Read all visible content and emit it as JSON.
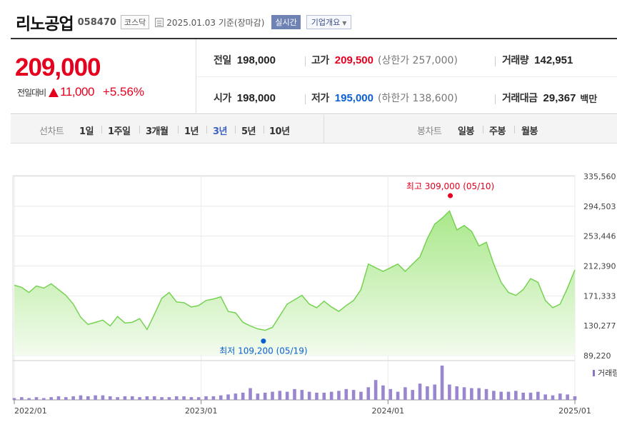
{
  "header": {
    "name": "리노공업",
    "code": "058470",
    "market": "코스닥",
    "date": "2025.01.03",
    "date_suffix": "기준(장마감)",
    "realtime": "실시간",
    "overview": "기업개요"
  },
  "quote": {
    "price": "209,000",
    "change_label": "전일대비",
    "change": "11,000",
    "change_pct": "+5.56%",
    "prev_label": "전일",
    "prev": "198,000",
    "high_label": "고가",
    "high": "209,500",
    "upper_limit": "(상한가 257,000)",
    "volume_label": "거래량",
    "volume": "142,951",
    "open_label": "시가",
    "open": "198,000",
    "low_label": "저가",
    "low": "195,000",
    "lower_limit": "(하한가 138,600)",
    "amount_label": "거래대금",
    "amount": "29,367",
    "amount_unit": "백만"
  },
  "tabs": {
    "line_label": "선차트",
    "periods": [
      "1일",
      "1주일",
      "3개월",
      "1년",
      "3년",
      "5년",
      "10년"
    ],
    "active_period": "3년",
    "candle_label": "봉차트",
    "candles": [
      "일봉",
      "주봉",
      "월봉"
    ]
  },
  "chart_data": {
    "type": "area",
    "x_start": "2022-01",
    "x_end": "2025-01",
    "x_ticks": [
      "2022/01",
      "2023/01",
      "2024/01",
      "2025/01"
    ],
    "y_ticks": [
      89220,
      130277,
      171333,
      212390,
      253446,
      294503,
      335560
    ],
    "ylim": [
      89220,
      335560
    ],
    "high_annotation": "최고 309,000 (05/10)",
    "low_annotation": "최저 109,200 (05/19)",
    "high_point": {
      "month": "2024-05",
      "value": 309000
    },
    "low_point": {
      "month": "2023-05",
      "value": 109200
    },
    "volume_legend": "거래량",
    "series": [
      {
        "values": [
          186000,
          183000,
          176000,
          185000,
          182000,
          188000,
          180000,
          172000,
          160000,
          142000,
          132000,
          135000,
          138000,
          130000,
          143000,
          134000,
          135000,
          140000,
          125000,
          146000,
          168000,
          176000,
          163000,
          162000,
          156000,
          158000,
          165000,
          167000,
          170000,
          150000,
          148000,
          135000,
          130000,
          126000,
          124000,
          128000,
          144000,
          160000,
          166000,
          172000,
          160000,
          155000,
          164000,
          156000,
          150000,
          158000,
          165000,
          180000,
          215000,
          210000,
          205000,
          210000,
          215000,
          205000,
          215000,
          225000,
          250000,
          270000,
          278000,
          288000,
          262000,
          268000,
          260000,
          240000,
          245000,
          215000,
          190000,
          176000,
          172000,
          180000,
          195000,
          190000,
          165000,
          155000,
          160000,
          182000,
          207000
        ]
      },
      {
        "name": "거래량",
        "values": [
          2,
          3,
          2,
          3,
          2,
          3,
          4,
          3,
          4,
          5,
          4,
          5,
          5,
          4,
          3,
          4,
          4,
          3,
          4,
          4,
          3,
          3,
          4,
          4,
          3,
          3,
          4,
          4,
          5,
          6,
          7,
          8,
          13,
          7,
          8,
          9,
          10,
          9,
          12,
          11,
          9,
          8,
          8,
          9,
          10,
          12,
          11,
          9,
          14,
          22,
          16,
          12,
          9,
          14,
          11,
          18,
          15,
          17,
          38,
          17,
          15,
          14,
          13,
          13,
          12,
          10,
          9,
          9,
          10,
          8,
          8,
          9,
          6,
          5,
          7,
          6,
          4
        ]
      }
    ]
  }
}
